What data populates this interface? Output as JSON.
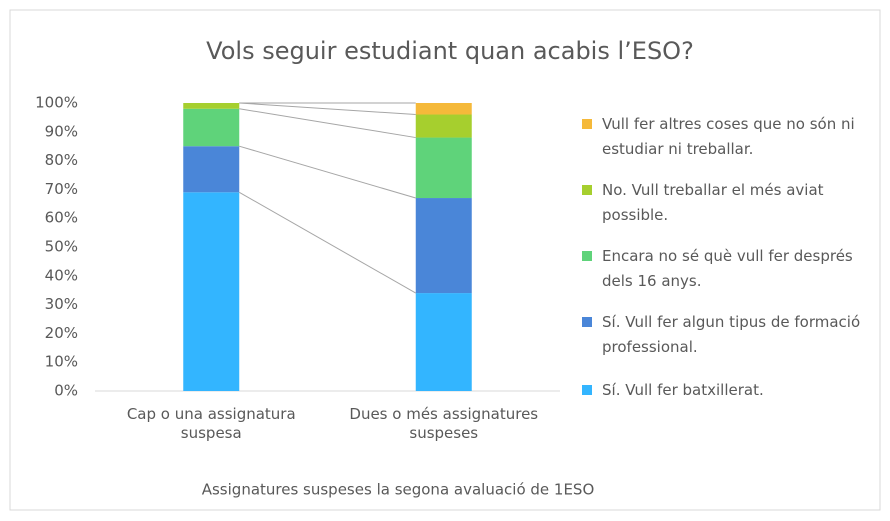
{
  "chart_data": {
    "type": "stacked_bar",
    "title": "Vols seguir estudiant quan acabis l’ESO?",
    "x_label": "Assignatures suspeses la segona avaluació de 1ESO",
    "categories": [
      "Cap o una assignatura suspesa",
      "Dues o més assignatures suspeses"
    ],
    "series": [
      {
        "name": "Sí. Vull fer batxillerat.",
        "color": "#33b5ff",
        "values": [
          69,
          34
        ]
      },
      {
        "name": "Sí. Vull fer algun tipus de formació professional.",
        "color": "#4a86d8",
        "values": [
          16,
          33
        ]
      },
      {
        "name": "Encara no sé què vull fer després dels 16 anys.",
        "color": "#5fd37a",
        "values": [
          13,
          21
        ]
      },
      {
        "name": "No. Vull treballar el més aviat possible.",
        "color": "#a6cf2e",
        "values": [
          2,
          8
        ]
      },
      {
        "name": "Vull fer altres coses que no són ni estudiar ni treballar.",
        "color": "#f5b93a",
        "values": [
          0,
          4
        ]
      }
    ],
    "ylim": [
      0,
      100
    ],
    "yticks": [
      {
        "value": 0,
        "label": "0%"
      },
      {
        "value": 10,
        "label": "10%"
      },
      {
        "value": 20,
        "label": "20%"
      },
      {
        "value": 30,
        "label": "30%"
      },
      {
        "value": 40,
        "label": "40%"
      },
      {
        "value": 50,
        "label": "50%"
      },
      {
        "value": 60,
        "label": "60%"
      },
      {
        "value": 70,
        "label": "70%"
      },
      {
        "value": 80,
        "label": "80%"
      },
      {
        "value": 90,
        "label": "90%"
      },
      {
        "value": 100,
        "label": "100%"
      }
    ],
    "series_lines": true,
    "legend": "right"
  }
}
